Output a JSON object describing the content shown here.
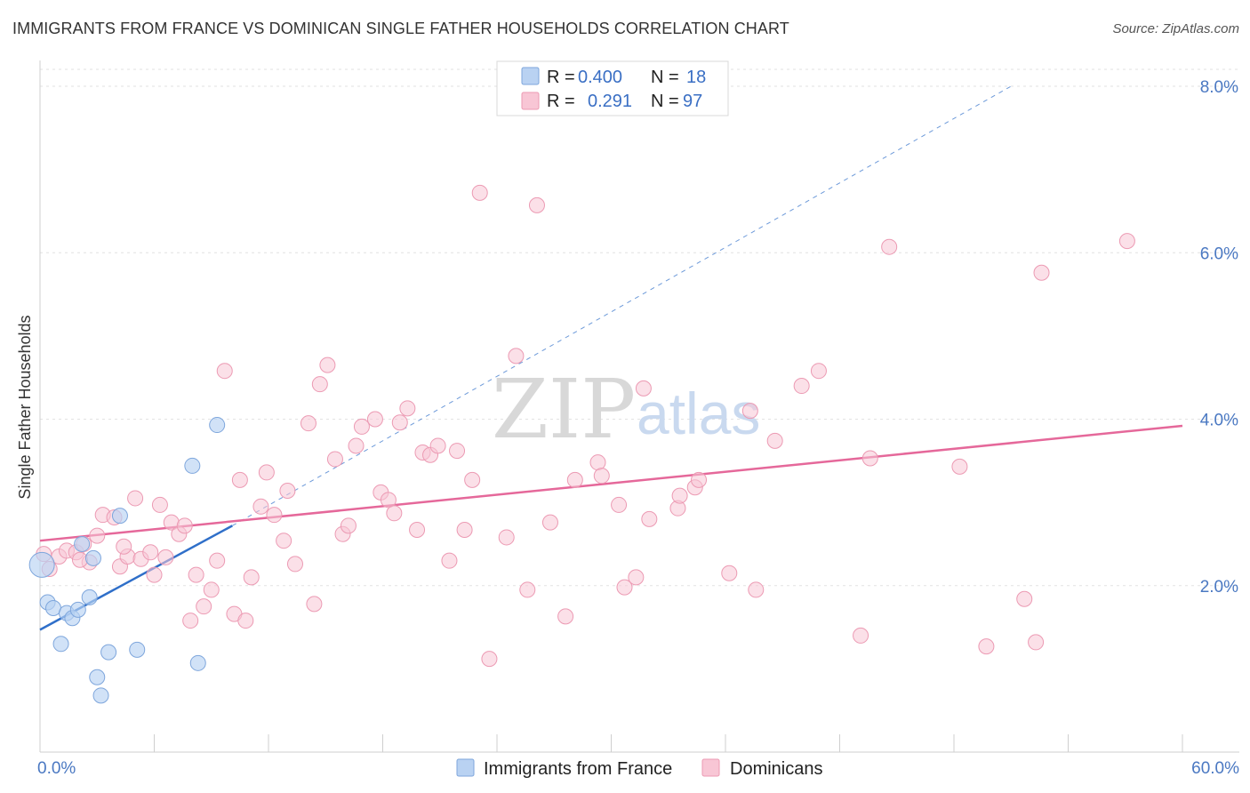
{
  "header": {
    "title": "IMMIGRANTS FROM FRANCE VS DOMINICAN SINGLE FATHER HOUSEHOLDS CORRELATION CHART",
    "source": "Source: ZipAtlas.com"
  },
  "watermark": {
    "zip": "ZIP",
    "atlas": "atlas"
  },
  "chart_data": {
    "type": "scatter",
    "title": "IMMIGRANTS FROM FRANCE VS DOMINICAN SINGLE FATHER HOUSEHOLDS CORRELATION CHART",
    "xlabel": "",
    "ylabel": "Single Father Households",
    "xlim": [
      0,
      60
    ],
    "ylim": [
      0,
      8
    ],
    "x_tick_labels": {
      "min": "0.0%",
      "max": "60.0%"
    },
    "y_ticks": [
      {
        "value": 2,
        "label": "2.0%"
      },
      {
        "value": 4,
        "label": "4.0%"
      },
      {
        "value": 6,
        "label": "6.0%"
      },
      {
        "value": 8,
        "label": "8.0%"
      }
    ],
    "colors": {
      "france_fill": "#b9d2f2",
      "france_stroke": "#7ea6dc",
      "france_line": "#2f6fc9",
      "dominican_fill": "#f8c6d5",
      "dominican_stroke": "#ec9ab3",
      "dominican_line": "#e5689a"
    },
    "legend": {
      "rows": [
        {
          "r_label": "R =",
          "r_value": "0.400",
          "n_label": "N =",
          "n_value": "18"
        },
        {
          "r_label": "R =",
          "r_value": "0.291",
          "n_label": "N =",
          "n_value": "97"
        }
      ],
      "bottom": [
        "Immigrants from France",
        "Dominicans"
      ]
    },
    "series": [
      {
        "name": "Immigrants from France",
        "points": [
          [
            0.1,
            2.25
          ],
          [
            0.4,
            1.8
          ],
          [
            0.7,
            1.73
          ],
          [
            1.1,
            1.3
          ],
          [
            1.4,
            1.67
          ],
          [
            1.7,
            1.61
          ],
          [
            2.0,
            1.71
          ],
          [
            2.2,
            2.5
          ],
          [
            2.6,
            1.86
          ],
          [
            2.8,
            2.33
          ],
          [
            3.0,
            0.9
          ],
          [
            3.2,
            0.68
          ],
          [
            3.6,
            1.2
          ],
          [
            4.2,
            2.84
          ],
          [
            5.1,
            1.23
          ],
          [
            8.0,
            3.44
          ],
          [
            8.3,
            1.07
          ],
          [
            9.3,
            3.93
          ]
        ],
        "trend": {
          "x0": 0.0,
          "y0": 1.47,
          "x1": 10.1,
          "y1": 2.72
        },
        "trend_ext": {
          "x0": 10.1,
          "y0": 2.72,
          "x1": 51.0,
          "y1": 8.0
        }
      },
      {
        "name": "Dominicans",
        "points": [
          [
            0.2,
            2.38
          ],
          [
            0.5,
            2.2
          ],
          [
            1.0,
            2.35
          ],
          [
            1.4,
            2.42
          ],
          [
            1.9,
            2.4
          ],
          [
            2.3,
            2.5
          ],
          [
            2.6,
            2.28
          ],
          [
            3.0,
            2.6
          ],
          [
            3.3,
            2.85
          ],
          [
            3.9,
            2.82
          ],
          [
            4.2,
            2.23
          ],
          [
            4.6,
            2.35
          ],
          [
            5.0,
            3.05
          ],
          [
            5.3,
            2.32
          ],
          [
            5.8,
            2.4
          ],
          [
            6.0,
            2.13
          ],
          [
            6.3,
            2.97
          ],
          [
            6.6,
            2.34
          ],
          [
            6.9,
            2.76
          ],
          [
            7.3,
            2.62
          ],
          [
            7.6,
            2.72
          ],
          [
            7.9,
            1.58
          ],
          [
            8.2,
            2.13
          ],
          [
            8.6,
            1.75
          ],
          [
            9.0,
            1.95
          ],
          [
            9.3,
            2.3
          ],
          [
            9.7,
            4.58
          ],
          [
            10.2,
            1.66
          ],
          [
            10.5,
            3.27
          ],
          [
            10.8,
            1.58
          ],
          [
            11.1,
            2.1
          ],
          [
            11.6,
            2.95
          ],
          [
            11.9,
            3.36
          ],
          [
            12.3,
            2.85
          ],
          [
            13.0,
            3.14
          ],
          [
            13.4,
            2.26
          ],
          [
            14.1,
            3.95
          ],
          [
            14.4,
            1.78
          ],
          [
            14.7,
            4.42
          ],
          [
            15.1,
            4.65
          ],
          [
            15.5,
            3.52
          ],
          [
            15.9,
            2.62
          ],
          [
            16.2,
            2.72
          ],
          [
            16.6,
            3.68
          ],
          [
            16.9,
            3.91
          ],
          [
            17.6,
            4.0
          ],
          [
            17.9,
            3.12
          ],
          [
            18.3,
            3.03
          ],
          [
            18.6,
            2.87
          ],
          [
            18.9,
            3.96
          ],
          [
            19.3,
            4.13
          ],
          [
            19.8,
            2.67
          ],
          [
            20.1,
            3.6
          ],
          [
            20.5,
            3.57
          ],
          [
            20.9,
            3.68
          ],
          [
            21.5,
            2.3
          ],
          [
            21.9,
            3.62
          ],
          [
            22.3,
            2.67
          ],
          [
            22.7,
            3.27
          ],
          [
            23.1,
            6.72
          ],
          [
            23.6,
            1.12
          ],
          [
            24.5,
            2.58
          ],
          [
            25.0,
            4.76
          ],
          [
            25.6,
            1.95
          ],
          [
            26.1,
            6.57
          ],
          [
            26.8,
            2.76
          ],
          [
            27.6,
            1.63
          ],
          [
            28.1,
            3.27
          ],
          [
            29.3,
            3.48
          ],
          [
            29.5,
            3.32
          ],
          [
            30.4,
            2.97
          ],
          [
            30.7,
            1.98
          ],
          [
            31.3,
            2.1
          ],
          [
            31.7,
            4.37
          ],
          [
            32.0,
            2.8
          ],
          [
            33.5,
            2.93
          ],
          [
            33.6,
            3.08
          ],
          [
            34.4,
            3.18
          ],
          [
            34.6,
            3.27
          ],
          [
            36.2,
            2.15
          ],
          [
            37.3,
            4.1
          ],
          [
            37.6,
            1.95
          ],
          [
            38.6,
            3.74
          ],
          [
            40.0,
            4.4
          ],
          [
            40.9,
            4.58
          ],
          [
            43.1,
            1.4
          ],
          [
            43.6,
            3.53
          ],
          [
            44.6,
            6.07
          ],
          [
            48.3,
            3.43
          ],
          [
            49.7,
            1.27
          ],
          [
            51.7,
            1.84
          ],
          [
            52.3,
            1.32
          ],
          [
            52.6,
            5.76
          ],
          [
            57.1,
            6.14
          ],
          [
            2.1,
            2.31
          ],
          [
            4.4,
            2.47
          ],
          [
            12.8,
            2.54
          ]
        ],
        "trend": {
          "x0": 0.0,
          "y0": 2.54,
          "x1": 60.0,
          "y1": 3.92
        }
      }
    ]
  }
}
